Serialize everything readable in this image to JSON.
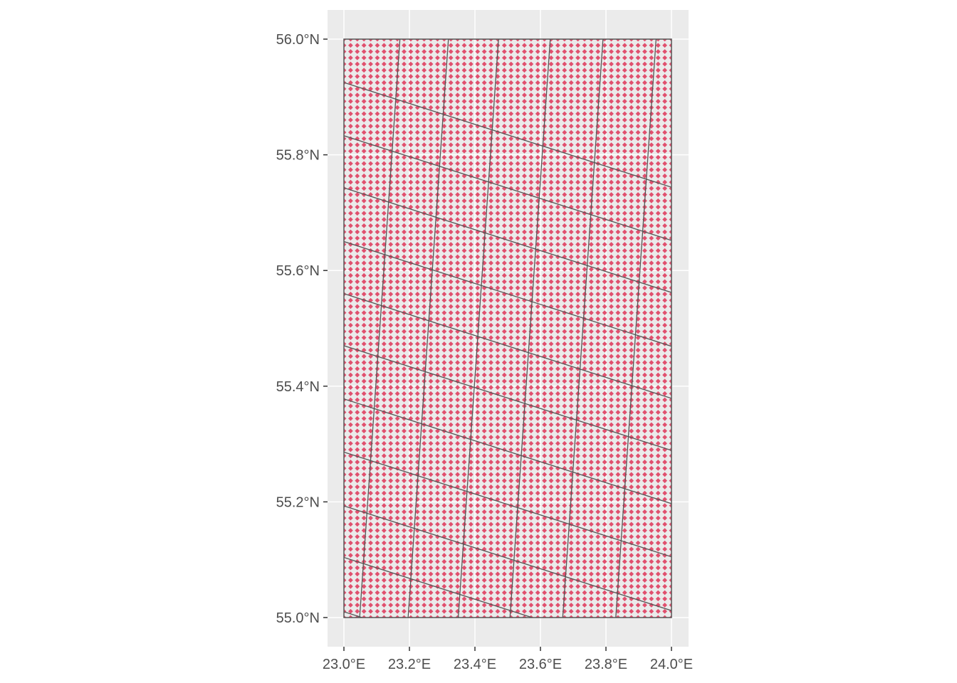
{
  "chart_data": {
    "type": "map",
    "coord_system": "geographic (longitude/latitude)",
    "xlim": [
      23.0,
      24.0
    ],
    "ylim": [
      55.0,
      56.0
    ],
    "x_breaks": [
      23.0,
      23.2,
      23.4,
      23.6,
      23.8,
      24.0
    ],
    "y_breaks": [
      55.0,
      55.2,
      55.4,
      55.6,
      55.8,
      56.0
    ],
    "x_tick_labels": [
      "23.0°E",
      "23.2°E",
      "23.4°E",
      "23.6°E",
      "23.8°E",
      "24.0°E"
    ],
    "y_tick_labels": [
      "55.0°N",
      "55.2°N",
      "55.4°N",
      "55.6°N",
      "55.8°N",
      "56.0°N"
    ],
    "bounding_box": {
      "lon_min": 23.0,
      "lon_max": 24.0,
      "lat_min": 55.0,
      "lat_max": 56.0
    },
    "points_layer": {
      "shape": "diamond",
      "color": "#e0506e",
      "columns": 50,
      "rows": 94,
      "lon_range": [
        23.0,
        24.0
      ],
      "lat_range": [
        55.0,
        56.0
      ]
    },
    "grid_layer": {
      "line_color": "#555555",
      "description": "rotated projected square grid overlaid on the area",
      "lat_intercepts_west_edge": [
        55.01,
        55.104,
        55.193,
        55.286,
        55.378,
        55.47,
        55.56,
        55.65,
        55.743,
        55.833,
        55.925
      ],
      "lat_drop_per_degree_lon": 0.181,
      "lon_intercepts_south_edge": [
        23.048,
        23.196,
        23.349,
        23.507,
        23.668,
        23.83
      ],
      "lon_shift_per_degree_lat": 0.123
    },
    "panel_background": "#ebebeb",
    "grid_color": "#ffffff",
    "grid": true,
    "legend": "none",
    "title": "",
    "xlabel": "",
    "ylabel": ""
  }
}
